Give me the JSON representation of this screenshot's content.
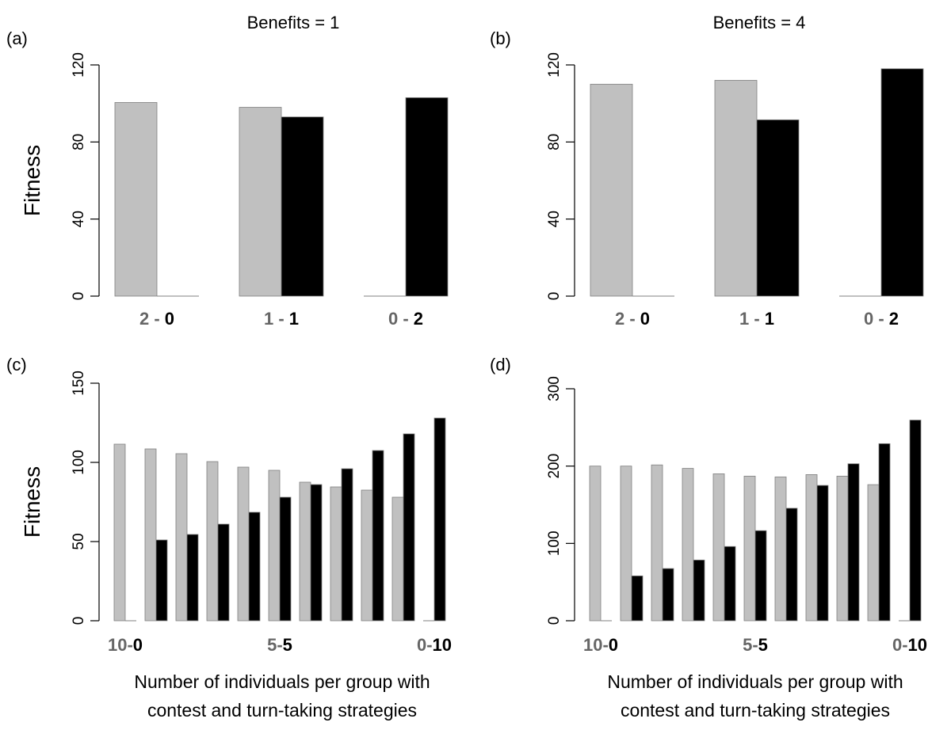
{
  "colors": {
    "contest": "#c0c0c0",
    "turn_taking": "#000000",
    "gray_text": "#666666",
    "bar_stroke": "#808080"
  },
  "chart_data": [
    {
      "panel": "(a)",
      "type": "bar",
      "title": "Benefits = 1",
      "ylabel": "Fitness",
      "xlabel": "",
      "ylim": [
        0,
        120
      ],
      "yticks": [
        0,
        40,
        80,
        120
      ],
      "categories": [
        {
          "left": "2",
          "sep": "-",
          "right": "0"
        },
        {
          "left": "1",
          "sep": "-",
          "right": "1"
        },
        {
          "left": "0",
          "sep": "-",
          "right": "2"
        }
      ],
      "series": [
        {
          "values": [
            100.5,
            98,
            0
          ]
        },
        {
          "values": [
            0,
            93,
            103
          ]
        }
      ]
    },
    {
      "panel": "(b)",
      "type": "bar",
      "title": "Benefits = 4",
      "ylabel": "",
      "xlabel": "",
      "ylim": [
        0,
        120
      ],
      "yticks": [
        0,
        40,
        80,
        120
      ],
      "categories": [
        {
          "left": "2",
          "sep": "-",
          "right": "0"
        },
        {
          "left": "1",
          "sep": "-",
          "right": "1"
        },
        {
          "left": "0",
          "sep": "-",
          "right": "2"
        }
      ],
      "series": [
        {
          "values": [
            110,
            112,
            0
          ]
        },
        {
          "values": [
            0,
            91.5,
            118
          ]
        }
      ]
    },
    {
      "panel": "(c)",
      "type": "bar",
      "title": "",
      "ylabel": "Fitness",
      "xlabel": "Number of individuals per group with contest and turn-taking strategies",
      "xlabel_lines": [
        "Number of individuals per group with",
        "contest and turn-taking strategies"
      ],
      "ylim": [
        0,
        150
      ],
      "yticks": [
        0,
        50,
        100,
        150
      ],
      "group_count": 11,
      "category_labels": [
        {
          "group": 0,
          "left": "10",
          "sep": "-",
          "right": "0"
        },
        {
          "group": 5,
          "left": "5",
          "sep": "-",
          "right": "5"
        },
        {
          "group": 10,
          "left": "0",
          "sep": "-",
          "right": "10"
        }
      ],
      "series": [
        {
          "values": [
            111.5,
            108.5,
            105.5,
            100.5,
            97,
            95,
            87.5,
            84.5,
            82.5,
            78,
            0
          ]
        },
        {
          "values": [
            0,
            51,
            54.5,
            61,
            68.5,
            78,
            86,
            96,
            107.5,
            118,
            128
          ]
        }
      ]
    },
    {
      "panel": "(d)",
      "type": "bar",
      "title": "",
      "ylabel": "",
      "xlabel": "Number of individuals per group with contest and turn-taking strategies",
      "xlabel_lines": [
        "Number of individuals per group with",
        "contest and turn-taking strategies"
      ],
      "ylim": [
        0,
        300
      ],
      "yticks": [
        0,
        100,
        200,
        300
      ],
      "group_count": 11,
      "category_labels": [
        {
          "group": 0,
          "left": "10",
          "sep": "-",
          "right": "0"
        },
        {
          "group": 5,
          "left": "5",
          "sep": "-",
          "right": "5"
        },
        {
          "group": 10,
          "left": "0",
          "sep": "-",
          "right": "10"
        }
      ],
      "series": [
        {
          "values": [
            200,
            200,
            201.5,
            197,
            190,
            187,
            186,
            189,
            187,
            176,
            0
          ]
        },
        {
          "values": [
            0,
            58,
            67.5,
            78.5,
            96,
            116.5,
            145.5,
            175,
            203,
            229,
            259.5
          ]
        }
      ]
    }
  ]
}
